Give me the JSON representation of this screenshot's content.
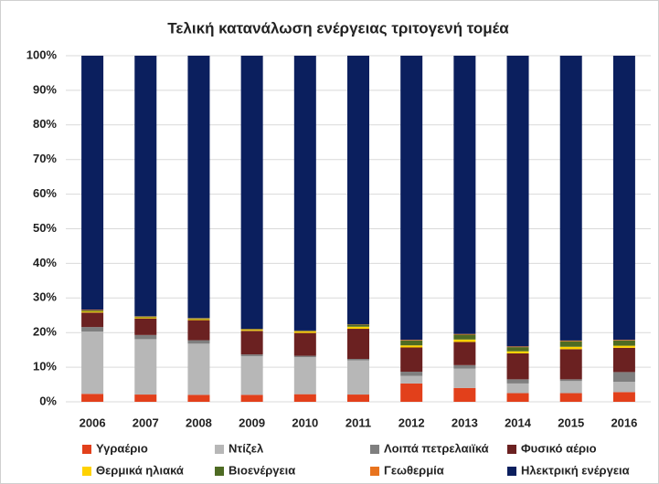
{
  "chart_data": {
    "type": "stacked_bar_100",
    "title": "Τελική κατανάλωση ενέργειας τριτογενή τομέα",
    "categories": [
      "2006",
      "2007",
      "2008",
      "2009",
      "2010",
      "2011",
      "2012",
      "2013",
      "2014",
      "2015",
      "2016"
    ],
    "series": [
      {
        "name": "Υγραέριο",
        "color": "#e2401b",
        "values": [
          2.3,
          2.1,
          2.0,
          2.0,
          2.2,
          2.1,
          5.3,
          4.0,
          2.5,
          2.5,
          2.8
        ]
      },
      {
        "name": "Ντίζελ",
        "color": "#b7b7b7",
        "values": [
          18,
          16,
          14.8,
          11.2,
          10.7,
          9.9,
          2.2,
          5.6,
          2.8,
          3.5,
          3.0
        ]
      },
      {
        "name": "Λοιπά πετρελαιϊκά",
        "color": "#7f7f7f",
        "values": [
          1.3,
          1.2,
          1.0,
          0.5,
          0.4,
          0.4,
          1.2,
          1.0,
          1.2,
          0.5,
          2.8
        ]
      },
      {
        "name": "Φυσικό αέριο",
        "color": "#6b2121",
        "values": [
          4.2,
          4.8,
          5.8,
          6.8,
          6.6,
          8.7,
          7.0,
          6.7,
          7.5,
          8.7,
          7.0
        ]
      },
      {
        "name": "Θερμικά ηλιακά",
        "color": "#ffd200",
        "values": [
          0.3,
          0.3,
          0.3,
          0.3,
          0.4,
          0.6,
          0.6,
          0.7,
          0.6,
          0.7,
          0.6
        ]
      },
      {
        "name": "Βιοενέργεια",
        "color": "#4e6b23",
        "values": [
          0.3,
          0.2,
          0.2,
          0.2,
          0.2,
          0.6,
          1.4,
          1.4,
          1.2,
          1.6,
          1.5
        ]
      },
      {
        "name": "Γεωθερμία",
        "color": "#e8731e",
        "values": [
          0.2,
          0.1,
          0.1,
          0.1,
          0.1,
          0.1,
          0.2,
          0.2,
          0.2,
          0.2,
          0.2
        ]
      },
      {
        "name": "Ηλεκτρική ενέργεια",
        "color": "#0b1f5e",
        "values": [
          73.4,
          75.3,
          75.8,
          78.9,
          79.4,
          77.6,
          82.1,
          80.4,
          84,
          82.3,
          82.1
        ]
      }
    ],
    "ylim": [
      0,
      100
    ],
    "yticks": [
      {
        "value": 0,
        "label": "0%"
      },
      {
        "value": 10,
        "label": "10%"
      },
      {
        "value": 20,
        "label": "20%"
      },
      {
        "value": 30,
        "label": "30%"
      },
      {
        "value": 40,
        "label": "40%"
      },
      {
        "value": 50,
        "label": "50%"
      },
      {
        "value": 60,
        "label": "60%"
      },
      {
        "value": 70,
        "label": "70%"
      },
      {
        "value": 80,
        "label": "80%"
      },
      {
        "value": 90,
        "label": "90%"
      },
      {
        "value": 100,
        "label": "100%"
      }
    ],
    "grid": true,
    "legend": "bottom"
  }
}
